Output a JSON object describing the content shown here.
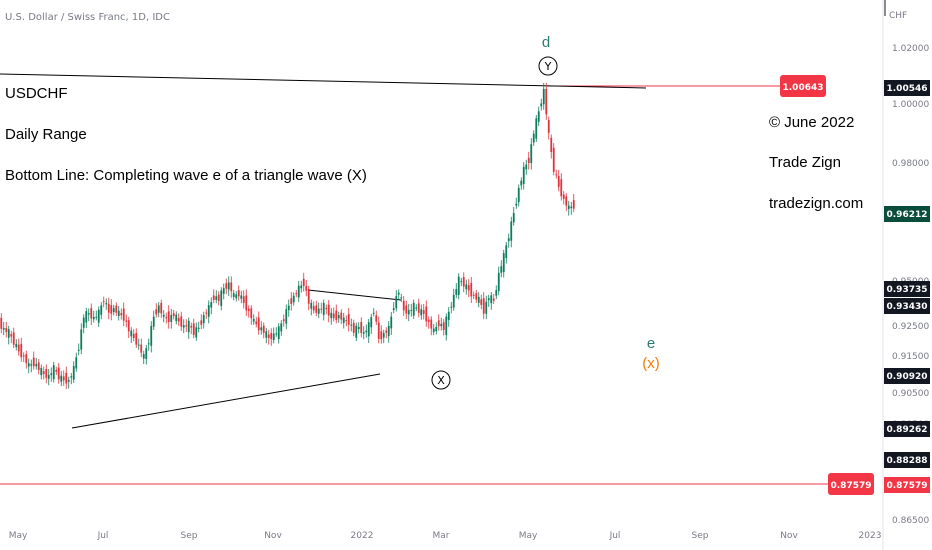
{
  "header": {
    "symbol_title": "U.S. Dollar / Swiss Franc, 1D, IDC"
  },
  "notes": [
    "USDCHF",
    "Daily Range",
    "Bottom Line: Completing wave e of a triangle wave (X)"
  ],
  "credits": [
    "© June 2022",
    "Trade Zign",
    "tradezign.com"
  ],
  "chart_data": {
    "type": "candlestick",
    "title": "U.S. Dollar / Swiss Franc, 1D, IDC",
    "currency": "CHF",
    "y_ticks": [
      "1.02000",
      "1.00000",
      "0.98000",
      "0.95000",
      "0.92500",
      "0.91500",
      "0.90500",
      "0.89500",
      "0.87500",
      "0.86500"
    ],
    "x_ticks": [
      "May",
      "Jul",
      "Sep",
      "Nov",
      "2022",
      "Mar",
      "May",
      "Jul",
      "Sep",
      "Nov",
      "2023"
    ],
    "price_labels": [
      {
        "value": "1.00546",
        "color": "#131722"
      },
      {
        "value": "0.96212",
        "color": "#0b4d3c"
      },
      {
        "value": "0.93735",
        "color": "#131722"
      },
      {
        "value": "0.93430",
        "color": "#131722"
      },
      {
        "value": "0.90920",
        "color": "#131722"
      },
      {
        "value": "0.89262",
        "color": "#131722"
      },
      {
        "value": "0.88288",
        "color": "#131722"
      },
      {
        "value": "0.87579",
        "color": "#f23645"
      }
    ],
    "line_labels": [
      {
        "value": "1.00643",
        "color": "#f23645"
      },
      {
        "value": "0.87579",
        "color": "#f23645"
      }
    ],
    "wave_labels": {
      "d": "d",
      "Y": "Y",
      "X": "X",
      "e": "e",
      "x": "(x)"
    },
    "colors": {
      "up": "#0b7d5c",
      "down": "#e0323c",
      "hline": "#f23645",
      "trend": "#000000",
      "d": "#2a7d74",
      "x_orange": "#f57c00"
    },
    "series": [
      [
        0,
        0.9205
      ],
      [
        5,
        0.918
      ],
      [
        10,
        0.917
      ],
      [
        15,
        0.9135
      ],
      [
        20,
        0.9105
      ],
      [
        25,
        0.908
      ],
      [
        30,
        0.905
      ],
      [
        35,
        0.906
      ],
      [
        40,
        0.904
      ],
      [
        45,
        0.902
      ],
      [
        50,
        0.901
      ],
      [
        55,
        0.904
      ],
      [
        60,
        0.901
      ],
      [
        65,
        0.9
      ],
      [
        70,
        0.8995
      ],
      [
        75,
        0.904
      ],
      [
        80,
        0.912
      ],
      [
        85,
        0.923
      ],
      [
        90,
        0.924
      ],
      [
        95,
        0.922
      ],
      [
        100,
        0.924
      ],
      [
        105,
        0.929
      ],
      [
        110,
        0.9245
      ],
      [
        115,
        0.9255
      ],
      [
        120,
        0.924
      ],
      [
        125,
        0.9225
      ],
      [
        130,
        0.918
      ],
      [
        135,
        0.915
      ],
      [
        140,
        0.912
      ],
      [
        145,
        0.908
      ],
      [
        150,
        0.914
      ],
      [
        155,
        0.923
      ],
      [
        160,
        0.9265
      ],
      [
        165,
        0.9225
      ],
      [
        170,
        0.922
      ],
      [
        175,
        0.9235
      ],
      [
        180,
        0.921
      ],
      [
        185,
        0.919
      ],
      [
        190,
        0.92
      ],
      [
        195,
        0.917
      ],
      [
        200,
        0.919
      ],
      [
        205,
        0.923
      ],
      [
        210,
        0.926
      ],
      [
        215,
        0.93
      ],
      [
        220,
        0.929
      ],
      [
        225,
        0.933
      ],
      [
        230,
        0.9345
      ],
      [
        235,
        0.93
      ],
      [
        240,
        0.931
      ],
      [
        245,
        0.928
      ],
      [
        250,
        0.9245
      ],
      [
        255,
        0.921
      ],
      [
        260,
        0.919
      ],
      [
        265,
        0.9175
      ],
      [
        270,
        0.915
      ],
      [
        275,
        0.916
      ],
      [
        280,
        0.918
      ],
      [
        285,
        0.922
      ],
      [
        290,
        0.927
      ],
      [
        295,
        0.93
      ],
      [
        300,
        0.933
      ],
      [
        305,
        0.935
      ],
      [
        310,
        0.928
      ],
      [
        315,
        0.925
      ],
      [
        320,
        0.925
      ],
      [
        325,
        0.9265
      ],
      [
        330,
        0.924
      ],
      [
        335,
        0.9225
      ],
      [
        340,
        0.923
      ],
      [
        345,
        0.9215
      ],
      [
        350,
        0.921
      ],
      [
        355,
        0.9175
      ],
      [
        360,
        0.919
      ],
      [
        365,
        0.9165
      ],
      [
        370,
        0.9195
      ],
      [
        375,
        0.925
      ],
      [
        380,
        0.915
      ],
      [
        385,
        0.9165
      ],
      [
        390,
        0.9185
      ],
      [
        395,
        0.927
      ],
      [
        400,
        0.932
      ],
      [
        405,
        0.925
      ],
      [
        410,
        0.9245
      ],
      [
        415,
        0.9265
      ],
      [
        420,
        0.925
      ],
      [
        425,
        0.924
      ],
      [
        430,
        0.9205
      ],
      [
        435,
        0.9175
      ],
      [
        440,
        0.9205
      ],
      [
        445,
        0.9185
      ],
      [
        450,
        0.9245
      ],
      [
        455,
        0.93
      ],
      [
        460,
        0.936
      ],
      [
        465,
        0.9345
      ],
      [
        470,
        0.9325
      ],
      [
        475,
        0.93
      ],
      [
        480,
        0.929
      ],
      [
        485,
        0.925
      ],
      [
        490,
        0.93
      ],
      [
        495,
        0.9285
      ],
      [
        500,
        0.938
      ],
      [
        505,
        0.9445
      ],
      [
        510,
        0.952
      ],
      [
        515,
        0.9605
      ],
      [
        520,
        0.969
      ],
      [
        525,
        0.976
      ],
      [
        530,
        0.9795
      ],
      [
        535,
        0.9895
      ],
      [
        540,
        0.997
      ],
      [
        545,
        1.0045
      ],
      [
        550,
        0.988
      ],
      [
        555,
        0.976
      ],
      [
        560,
        0.97
      ],
      [
        565,
        0.965
      ],
      [
        570,
        0.962
      ],
      [
        575,
        0.963
      ]
    ]
  }
}
